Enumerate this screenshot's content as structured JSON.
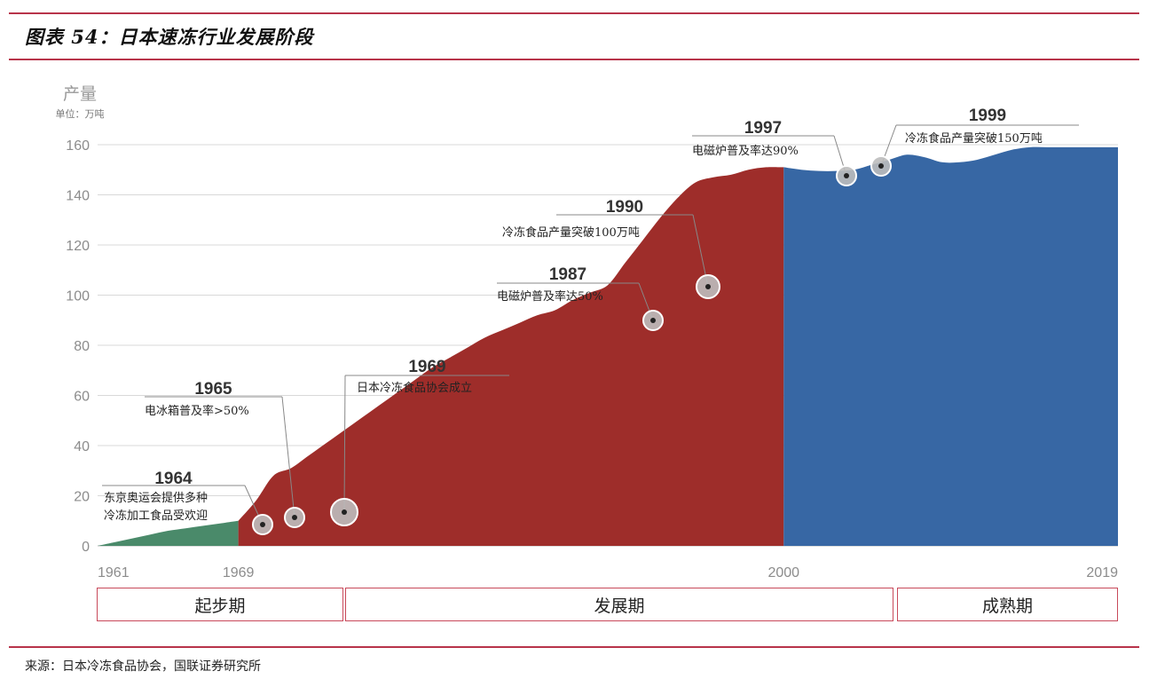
{
  "figure_title": "图表 54：日本速冻行业发展阶段",
  "source": "来源：日本冷冻食品协会，国联证券研究所",
  "y_axis": {
    "title": "产量",
    "unit": "单位：万吨"
  },
  "chart_data": {
    "type": "area",
    "ylabel": "产量",
    "yunit": "单位：万吨",
    "ylim": [
      0,
      160
    ],
    "yticks": [
      0,
      20,
      40,
      60,
      80,
      100,
      120,
      140,
      160
    ],
    "xlim": [
      1961,
      2019
    ],
    "xtick_labels": [
      "1961",
      "1969",
      "2000",
      "2019"
    ],
    "grid": true,
    "phases": [
      {
        "name": "起步期",
        "from": 1961,
        "to": 1969,
        "color": "#4a8a6a",
        "x": [
          1961,
          1962,
          1963,
          1964,
          1965,
          1966,
          1967,
          1968,
          1969
        ],
        "y": [
          0,
          1.5,
          3,
          4.5,
          6,
          7,
          8,
          9,
          10
        ]
      },
      {
        "name": "发展期",
        "from": 1969,
        "to": 2000,
        "color": "#9e2d2a",
        "x": [
          1969,
          1970,
          1971,
          1972,
          1973,
          1974,
          1975,
          1976,
          1977,
          1978,
          1979,
          1980,
          1981,
          1982,
          1983,
          1984,
          1985,
          1986,
          1987,
          1988,
          1989,
          1990,
          1991,
          1992,
          1993,
          1994,
          1995,
          1996,
          1997,
          1998,
          1999,
          2000
        ],
        "y": [
          10,
          18,
          28,
          31,
          36,
          41,
          46,
          51,
          56,
          61,
          66,
          71,
          75,
          79,
          83,
          86,
          89,
          92,
          94,
          98,
          101,
          104,
          113,
          122,
          131,
          139,
          145,
          147,
          148,
          150,
          151,
          151
        ]
      },
      {
        "name": "成熟期",
        "from": 2000,
        "to": 2019,
        "color": "#3767a4",
        "x": [
          2000,
          2001,
          2002,
          2003,
          2004,
          2005,
          2006,
          2007,
          2008,
          2009,
          2010,
          2011,
          2012,
          2013,
          2014,
          2015,
          2016,
          2017,
          2018,
          2019
        ],
        "y": [
          151,
          150,
          149.5,
          149.5,
          150,
          152,
          154,
          156,
          155,
          153,
          153,
          154,
          156,
          158,
          159,
          159,
          159,
          159,
          159,
          159
        ]
      }
    ],
    "annotations": [
      {
        "year": "1964",
        "text": [
          "东京奥运会提供多种",
          "冷冻加工食品受欢迎"
        ],
        "x": 1964.5,
        "y": 7.5
      },
      {
        "year": "1965",
        "text": [
          "电冰箱普及率>50%"
        ],
        "x": 1966.5,
        "y": 10.5
      },
      {
        "year": "1969",
        "text": [
          "日本冷冻食品协会成立"
        ],
        "x": 1969,
        "y": 13
      },
      {
        "year": "1987",
        "text": [
          "电磁炉普及率达50%"
        ],
        "x": 1988.5,
        "y": 89
      },
      {
        "year": "1990",
        "text": [
          "冷冻食品产量突破100万吨"
        ],
        "x": 1991.5,
        "y": 103
      },
      {
        "year": "1997",
        "text": [
          "电磁炉普及率达90%"
        ],
        "x": 1997.5,
        "y": 147.5
      },
      {
        "year": "1999",
        "text": [
          "冷冻食品产量突破150万吨"
        ],
        "x": 1999.5,
        "y": 151.5
      }
    ]
  },
  "stages": [
    "起步期",
    "发展期",
    "成熟期"
  ]
}
